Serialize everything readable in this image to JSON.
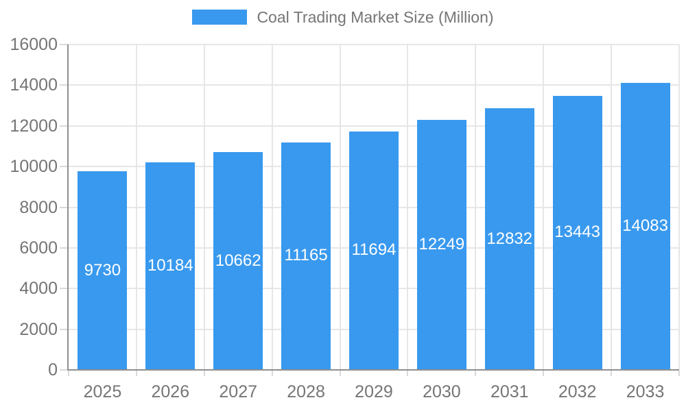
{
  "chart_data": {
    "type": "bar",
    "title": "Coal Trading Market Size (Million)",
    "categories": [
      "2025",
      "2026",
      "2027",
      "2028",
      "2029",
      "2030",
      "2031",
      "2032",
      "2033"
    ],
    "values": [
      9730,
      10184,
      10662,
      11165,
      11694,
      12249,
      12832,
      13443,
      14083
    ],
    "series": [
      {
        "name": "Coal Trading Market Size (Million)",
        "values": [
          9730,
          10184,
          10662,
          11165,
          11694,
          12249,
          12832,
          13443,
          14083
        ]
      }
    ],
    "value_labels": [
      "9730",
      "10184",
      "10662",
      "11165",
      "11694",
      "12249",
      "12832",
      "13443",
      "14083"
    ],
    "xlabel": "",
    "ylabel": "",
    "ylim": [
      0,
      16000
    ],
    "ytick_step": 2000,
    "ytick_labels": [
      "0",
      "2000",
      "4000",
      "6000",
      "8000",
      "10000",
      "12000",
      "14000",
      "16000"
    ],
    "grid": true,
    "legend_position": "top-center",
    "colors": {
      "bar": "#3999ee",
      "bar_value_text": "#ffffff",
      "axis_text": "#757575",
      "legend_text": "#757575",
      "axis_line": "#8f8f8f",
      "gridline": "#e6e6e6",
      "tick": "#d9d9d9",
      "background": "#ffffff"
    }
  }
}
